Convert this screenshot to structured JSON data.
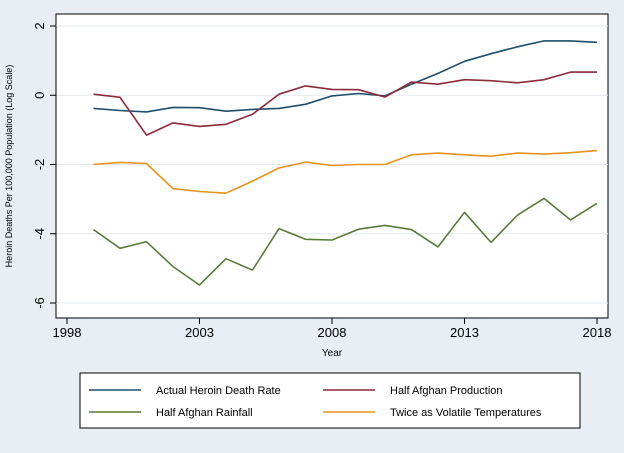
{
  "chart_data": {
    "type": "line",
    "title": "",
    "xlabel": "Year",
    "ylabel": "Heroin Deaths Per 100,000 Population (Log Scale)",
    "xlim": [
      1998,
      2018
    ],
    "ylim": [
      -6,
      2
    ],
    "x_ticks": [
      1998,
      2003,
      2008,
      2013,
      2018
    ],
    "y_ticks": [
      -6,
      -4,
      -2,
      0,
      2
    ],
    "grid": true,
    "legend_position": "bottom",
    "x": [
      1999,
      2000,
      2001,
      2002,
      2003,
      2004,
      2005,
      2006,
      2007,
      2008,
      2009,
      2010,
      2011,
      2012,
      2013,
      2014,
      2015,
      2016,
      2017,
      2018
    ],
    "series": [
      {
        "name": "Actual Heroin Death Rate",
        "color": "#1f4e6b",
        "values": [
          -0.38,
          -0.44,
          -0.48,
          -0.35,
          -0.36,
          -0.46,
          -0.41,
          -0.38,
          -0.26,
          -0.02,
          0.05,
          -0.02,
          0.32,
          0.63,
          0.98,
          1.2,
          1.4,
          1.57,
          1.57,
          1.53
        ]
      },
      {
        "name": "Half Afghan Production",
        "color": "#8b2a3a",
        "values": [
          0.03,
          -0.06,
          -1.15,
          -0.8,
          -0.9,
          -0.84,
          -0.55,
          0.03,
          0.27,
          0.17,
          0.16,
          -0.05,
          0.38,
          0.32,
          0.45,
          0.42,
          0.36,
          0.45,
          0.67,
          0.67
        ]
      },
      {
        "name": "Half Afghan Rainfall",
        "color": "#5a7a3a",
        "values": [
          -3.88,
          -4.42,
          -4.23,
          -4.95,
          -5.48,
          -4.72,
          -5.05,
          -3.85,
          -4.16,
          -4.18,
          -3.87,
          -3.76,
          -3.88,
          -4.38,
          -3.38,
          -4.25,
          -3.46,
          -2.98,
          -3.6,
          -3.12
        ]
      },
      {
        "name": "Twice as Volatile Temperatures",
        "color": "#e8921b",
        "values": [
          -2.0,
          -1.94,
          -1.97,
          -2.7,
          -2.78,
          -2.83,
          -2.48,
          -2.1,
          -1.93,
          -2.03,
          -2.0,
          -2.0,
          -1.72,
          -1.67,
          -1.72,
          -1.76,
          -1.67,
          -1.7,
          -1.66,
          -1.6
        ]
      }
    ]
  }
}
